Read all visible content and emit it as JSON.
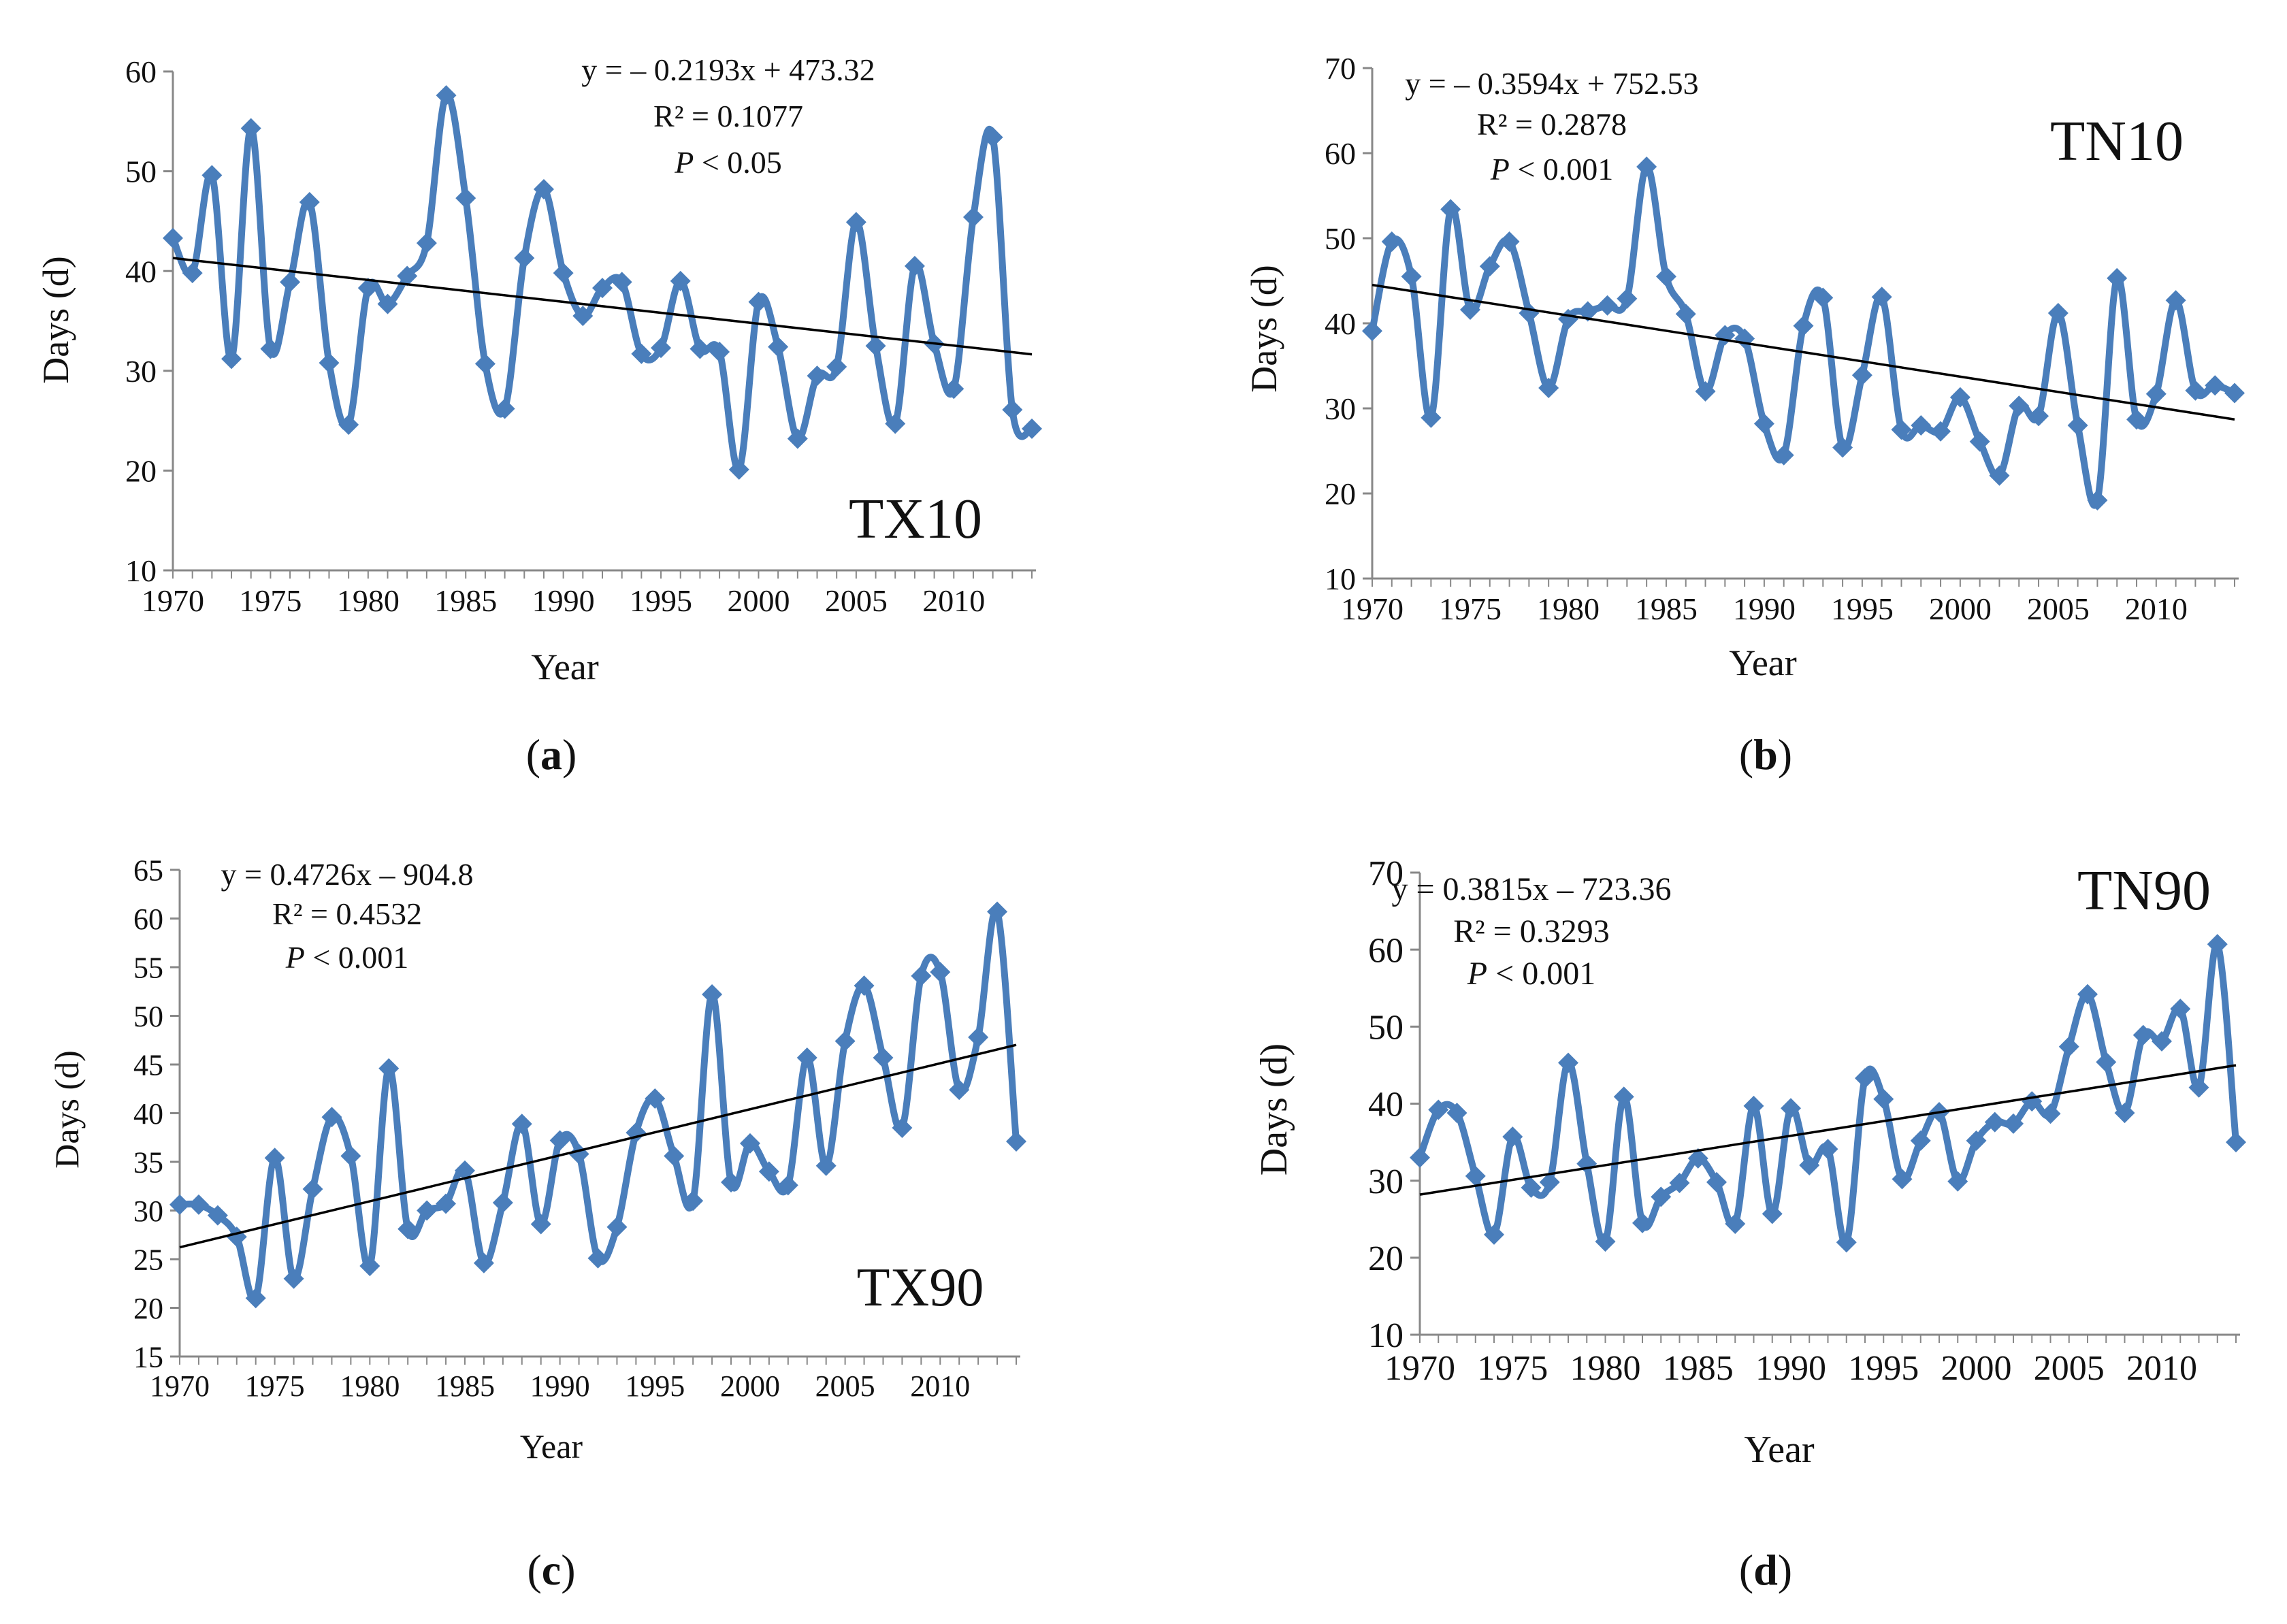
{
  "figure": {
    "panels": [
      {
        "caption_letter": "a"
      },
      {
        "caption_letter": "b"
      },
      {
        "caption_letter": "c"
      },
      {
        "caption_letter": "d"
      }
    ]
  },
  "chart_data": [
    {
      "type": "line",
      "panel": "a",
      "title": "TX10",
      "xlabel": "Year",
      "ylabel": "Days (d)",
      "xlim": [
        1970,
        2014
      ],
      "ylim": [
        10,
        60
      ],
      "xticks": [
        1970,
        1975,
        1980,
        1985,
        1990,
        1995,
        2000,
        2005,
        2010
      ],
      "yticks": [
        10,
        20,
        30,
        40,
        50,
        60
      ],
      "series_color": "#4a7ebb",
      "trend_color": "#000000",
      "x": [
        1970,
        1971,
        1972,
        1973,
        1974,
        1975,
        1976,
        1977,
        1978,
        1979,
        1980,
        1981,
        1982,
        1983,
        1984,
        1985,
        1986,
        1987,
        1988,
        1989,
        1990,
        1991,
        1992,
        1993,
        1994,
        1995,
        1996,
        1997,
        1998,
        1999,
        2000,
        2001,
        2002,
        2003,
        2004,
        2005,
        2006,
        2007,
        2008,
        2009,
        2010,
        2011,
        2012,
        2013,
        2014
      ],
      "values": [
        43.3,
        39.8,
        49.6,
        31.2,
        54.3,
        32.2,
        38.9,
        46.9,
        30.8,
        24.6,
        38.3,
        36.7,
        39.5,
        42.8,
        57.6,
        47.3,
        30.7,
        26.2,
        41.3,
        48.2,
        39.8,
        35.5,
        38.3,
        38.9,
        31.7,
        32.3,
        39.0,
        32.2,
        31.9,
        20.1,
        36.9,
        32.4,
        23.2,
        29.5,
        30.4,
        44.9,
        32.5,
        24.7,
        40.5,
        32.7,
        28.2,
        45.4,
        53.4,
        26.1,
        24.2
      ],
      "trend": {
        "slope": -0.2193,
        "intercept": 473.32
      },
      "annotations": {
        "equation": "y = – 0.2193x + 473.32",
        "r2": "R² = 0.1077",
        "p_symbol": "P",
        "p_rest": " < 0.05"
      }
    },
    {
      "type": "line",
      "panel": "b",
      "title": "TN10",
      "xlabel": "Year",
      "ylabel": "Days (d)",
      "xlim": [
        1970,
        2014
      ],
      "ylim": [
        10,
        70
      ],
      "xticks": [
        1970,
        1975,
        1980,
        1985,
        1990,
        1995,
        2000,
        2005,
        2010
      ],
      "yticks": [
        10,
        20,
        30,
        40,
        50,
        60,
        70
      ],
      "series_color": "#4a7ebb",
      "trend_color": "#000000",
      "x": [
        1970,
        1971,
        1972,
        1973,
        1974,
        1975,
        1976,
        1977,
        1978,
        1979,
        1980,
        1981,
        1982,
        1983,
        1984,
        1985,
        1986,
        1987,
        1988,
        1989,
        1990,
        1991,
        1992,
        1993,
        1994,
        1995,
        1996,
        1997,
        1998,
        1999,
        2000,
        2001,
        2002,
        2003,
        2004,
        2005,
        2006,
        2007,
        2008,
        2009,
        2010,
        2011,
        2012,
        2013,
        2014
      ],
      "values": [
        39.1,
        49.6,
        45.5,
        28.9,
        53.4,
        41.6,
        46.7,
        49.6,
        41.2,
        32.4,
        40.5,
        41.4,
        42.1,
        42.9,
        58.4,
        45.5,
        41.1,
        32.0,
        38.6,
        38.2,
        28.2,
        24.5,
        39.7,
        43.0,
        25.4,
        33.9,
        43.1,
        27.5,
        28.0,
        27.3,
        31.3,
        26.1,
        22.1,
        30.3,
        29.1,
        41.2,
        28.0,
        19.2,
        45.3,
        28.7,
        31.7,
        42.7,
        32.1,
        32.7,
        31.8
      ],
      "trend": {
        "slope": -0.3594,
        "intercept": 752.53
      },
      "annotations": {
        "equation": "y = – 0.3594x + 752.53",
        "r2": "R² = 0.2878",
        "p_symbol": "P",
        "p_rest": " < 0.001"
      }
    },
    {
      "type": "line",
      "panel": "c",
      "title": "TX90",
      "xlabel": "Year",
      "ylabel": "Days (d)",
      "xlim": [
        1970,
        2014
      ],
      "ylim": [
        15,
        65
      ],
      "xticks": [
        1970,
        1975,
        1980,
        1985,
        1990,
        1995,
        2000,
        2005,
        2010
      ],
      "yticks": [
        15,
        20,
        25,
        30,
        35,
        40,
        45,
        50,
        55,
        60,
        65
      ],
      "series_color": "#4a7ebb",
      "trend_color": "#000000",
      "x": [
        1970,
        1971,
        1972,
        1973,
        1974,
        1975,
        1976,
        1977,
        1978,
        1979,
        1980,
        1981,
        1982,
        1983,
        1984,
        1985,
        1986,
        1987,
        1988,
        1989,
        1990,
        1991,
        1992,
        1993,
        1994,
        1995,
        1996,
        1997,
        1998,
        1999,
        2000,
        2001,
        2002,
        2003,
        2004,
        2005,
        2006,
        2007,
        2008,
        2009,
        2010,
        2011,
        2012,
        2013,
        2014
      ],
      "values": [
        30.6,
        30.6,
        29.5,
        27.3,
        21.0,
        35.4,
        23.0,
        32.2,
        39.6,
        35.6,
        24.3,
        44.6,
        28.1,
        30.0,
        30.7,
        34.1,
        24.6,
        30.8,
        38.9,
        28.6,
        37.2,
        35.8,
        25.1,
        28.3,
        38.0,
        41.5,
        35.6,
        31.0,
        52.2,
        32.9,
        36.9,
        34.0,
        32.6,
        45.7,
        34.6,
        47.4,
        53.1,
        45.7,
        38.5,
        54.1,
        54.5,
        42.4,
        47.8,
        60.7,
        37.1
      ],
      "trend": {
        "slope": 0.4726,
        "intercept": -904.8
      },
      "annotations": {
        "equation": "y = 0.4726x – 904.8",
        "r2": "R² = 0.4532",
        "p_symbol": "P",
        "p_rest": " < 0.001"
      }
    },
    {
      "type": "line",
      "panel": "d",
      "title": "TN90",
      "xlabel": "Year",
      "ylabel": "Days (d)",
      "xlim": [
        1970,
        2014
      ],
      "ylim": [
        10,
        70
      ],
      "xticks": [
        1970,
        1975,
        1980,
        1985,
        1990,
        1995,
        2000,
        2005,
        2010
      ],
      "yticks": [
        10,
        20,
        30,
        40,
        50,
        60,
        70
      ],
      "series_color": "#4a7ebb",
      "trend_color": "#000000",
      "x": [
        1970,
        1971,
        1972,
        1973,
        1974,
        1975,
        1976,
        1977,
        1978,
        1979,
        1980,
        1981,
        1982,
        1983,
        1984,
        1985,
        1986,
        1987,
        1988,
        1989,
        1990,
        1991,
        1992,
        1993,
        1994,
        1995,
        1996,
        1997,
        1998,
        1999,
        2000,
        2001,
        2002,
        2003,
        2004,
        2005,
        2006,
        2007,
        2008,
        2009,
        2010,
        2011,
        2012,
        2013,
        2014
      ],
      "values": [
        33.0,
        39.2,
        38.8,
        30.6,
        23.0,
        35.7,
        29.1,
        29.8,
        45.3,
        32.2,
        22.1,
        40.9,
        24.5,
        27.9,
        29.7,
        32.9,
        29.8,
        24.4,
        39.7,
        25.7,
        39.4,
        32.0,
        34.1,
        22.0,
        43.3,
        40.6,
        30.2,
        35.2,
        38.9,
        29.9,
        35.2,
        37.6,
        37.4,
        40.3,
        38.7,
        47.4,
        54.2,
        45.4,
        38.8,
        48.9,
        48.1,
        52.3,
        42.1,
        60.7,
        35.0
      ],
      "trend": {
        "slope": 0.3815,
        "intercept": -723.36
      },
      "annotations": {
        "equation": "y = 0.3815x – 723.36",
        "r2": "R² = 0.3293",
        "p_symbol": "P",
        "p_rest": " < 0.001"
      }
    }
  ]
}
